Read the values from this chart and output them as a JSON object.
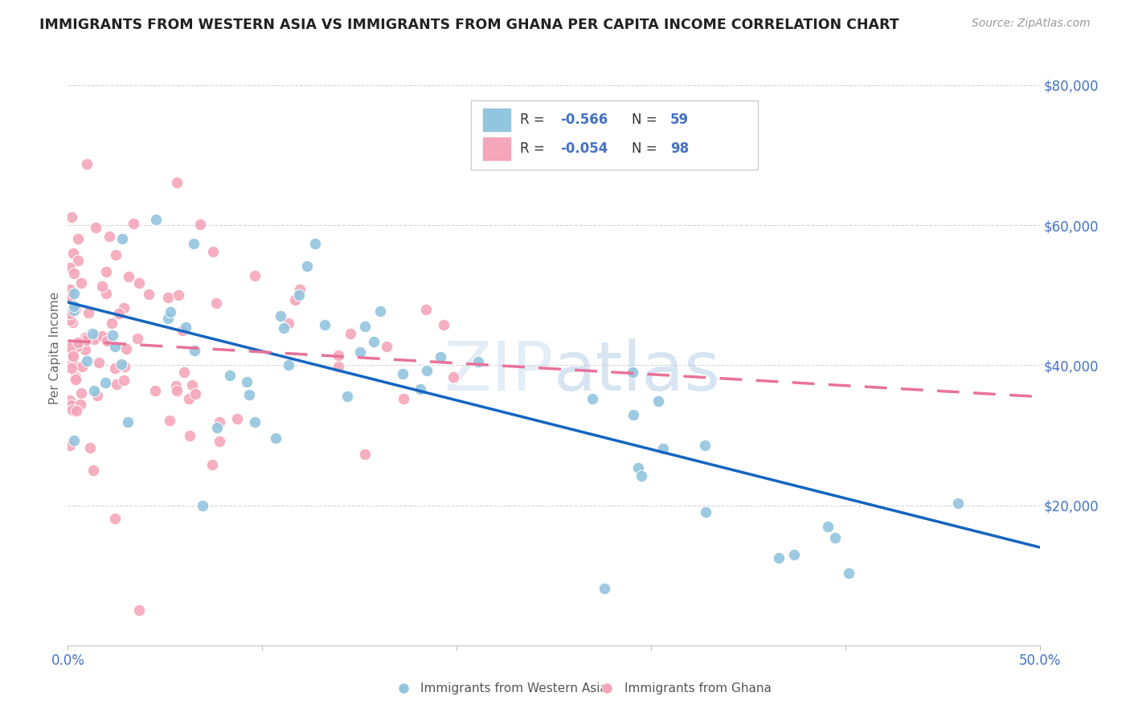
{
  "title": "IMMIGRANTS FROM WESTERN ASIA VS IMMIGRANTS FROM GHANA PER CAPITA INCOME CORRELATION CHART",
  "source": "Source: ZipAtlas.com",
  "ylabel": "Per Capita Income",
  "ytick_labels": [
    "$20,000",
    "$40,000",
    "$60,000",
    "$80,000"
  ],
  "ytick_vals": [
    20000,
    40000,
    60000,
    80000
  ],
  "legend_label1": "Immigrants from Western Asia",
  "legend_label2": "Immigrants from Ghana",
  "legend_R1_val": "-0.566",
  "legend_N1_val": "59",
  "legend_R2_val": "-0.054",
  "legend_N2_val": "98",
  "color_blue": "#92c5de",
  "color_pink": "#f4a6bb",
  "color_line_blue": "#1565c0",
  "color_line_pink": "#e8729a",
  "color_axis_text": "#4472c4",
  "watermark_color": "#d0e4f5",
  "blue_line_y0": 49000,
  "blue_line_y1": 14000,
  "pink_line_y0": 43500,
  "pink_line_y1": 35500,
  "xlim": [
    0,
    50
  ],
  "ylim": [
    0,
    85000
  ]
}
